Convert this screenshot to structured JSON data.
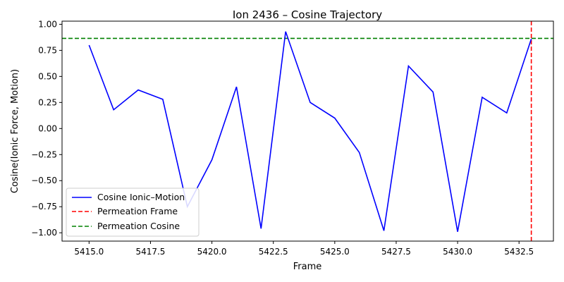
{
  "chart_data": {
    "type": "line",
    "title": "Ion 2436 – Cosine Trajectory",
    "xlabel": "Frame",
    "ylabel": "Cosine(Ionic Force, Motion)",
    "xlim": [
      5413.9,
      5433.9
    ],
    "ylim": [
      -1.08,
      1.03
    ],
    "xticks": [
      5415.0,
      5417.5,
      5420.0,
      5422.5,
      5425.0,
      5427.5,
      5430.0,
      5432.5
    ],
    "xtick_labels": [
      "5415.0",
      "5417.5",
      "5420.0",
      "5422.5",
      "5425.0",
      "5427.5",
      "5430.0",
      "5432.5"
    ],
    "yticks": [
      -1.0,
      -0.75,
      -0.5,
      -0.25,
      0.0,
      0.25,
      0.5,
      0.75,
      1.0
    ],
    "ytick_labels": [
      "−1.00",
      "−0.75",
      "−0.50",
      "−0.25",
      "0.00",
      "0.25",
      "0.50",
      "0.75",
      "1.00"
    ],
    "grid": false,
    "legend_position": "lower-left",
    "series": [
      {
        "name": "Cosine Ionic–Motion",
        "color": "#0000ff",
        "x": [
          5415,
          5416,
          5417,
          5418,
          5419,
          5420,
          5421,
          5422,
          5423,
          5424,
          5425,
          5426,
          5427,
          5428,
          5429,
          5430,
          5431,
          5432,
          5433
        ],
        "y": [
          0.8,
          0.18,
          0.37,
          0.28,
          -0.75,
          -0.3,
          0.4,
          -0.96,
          0.93,
          0.25,
          0.1,
          -0.23,
          -0.98,
          0.6,
          0.35,
          -0.99,
          0.3,
          0.15,
          0.86
        ]
      }
    ],
    "reference_lines": [
      {
        "name": "Permeation Frame",
        "orientation": "vertical",
        "x": 5433,
        "color": "#ff0000",
        "style": "dashed"
      },
      {
        "name": "Permeation Cosine",
        "orientation": "horizontal",
        "y": 0.865,
        "color": "#008000",
        "style": "dashed"
      }
    ]
  }
}
